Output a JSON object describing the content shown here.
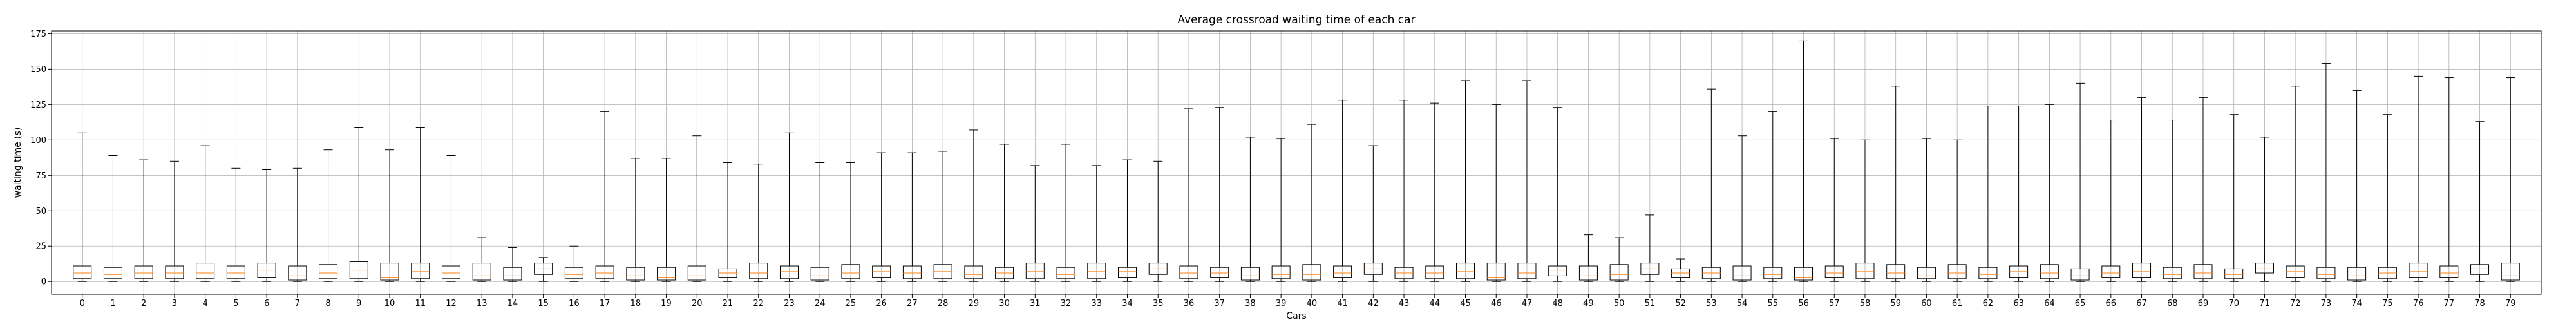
{
  "chart_data": {
    "type": "box",
    "title": "Average crossroad waiting time of each car",
    "xlabel": "Cars",
    "ylabel": "waiting time (s)",
    "ylim": [
      -9,
      177
    ],
    "yticks": [
      0,
      25,
      50,
      75,
      100,
      125,
      150,
      175
    ],
    "grid": true,
    "categories": [
      "0",
      "1",
      "2",
      "3",
      "4",
      "5",
      "6",
      "7",
      "8",
      "9",
      "10",
      "11",
      "12",
      "13",
      "14",
      "15",
      "16",
      "17",
      "18",
      "19",
      "20",
      "21",
      "22",
      "23",
      "24",
      "25",
      "26",
      "27",
      "28",
      "29",
      "30",
      "31",
      "32",
      "33",
      "34",
      "35",
      "36",
      "37",
      "38",
      "39",
      "40",
      "41",
      "42",
      "43",
      "44",
      "45",
      "46",
      "47",
      "48",
      "49",
      "50",
      "51",
      "52",
      "53",
      "54",
      "55",
      "56",
      "57",
      "58",
      "59",
      "60",
      "61",
      "62",
      "63",
      "64",
      "65",
      "66",
      "67",
      "68",
      "69",
      "70",
      "71",
      "72",
      "73",
      "74",
      "75",
      "76",
      "77",
      "78",
      "79"
    ],
    "whisker_low": [
      0,
      0,
      0,
      0,
      0,
      0,
      0,
      0,
      0,
      0,
      0,
      0,
      0,
      0,
      0,
      0,
      0,
      0,
      0,
      0,
      0,
      0,
      0,
      0,
      0,
      0,
      0,
      0,
      0,
      0,
      0,
      0,
      0,
      0,
      0,
      0,
      0,
      0,
      0,
      0,
      0,
      0,
      0,
      0,
      0,
      0,
      0,
      0,
      0,
      0,
      0,
      0,
      0,
      0,
      0,
      0,
      0,
      0,
      0,
      0,
      0,
      0,
      0,
      0,
      0,
      0,
      0,
      0,
      0,
      0,
      0,
      0,
      0,
      0,
      0,
      0,
      0,
      0,
      0,
      0
    ],
    "q1": [
      2,
      2,
      2,
      2,
      2,
      2,
      3,
      1,
      2,
      2,
      1,
      2,
      2,
      1,
      1,
      5,
      2,
      2,
      1,
      1,
      1,
      3,
      2,
      2,
      1,
      2,
      3,
      2,
      2,
      2,
      2,
      2,
      2,
      2,
      3,
      5,
      2,
      3,
      1,
      2,
      1,
      3,
      5,
      2,
      2,
      2,
      1,
      2,
      4,
      1,
      1,
      5,
      3,
      2,
      1,
      2,
      1,
      3,
      2,
      2,
      2,
      2,
      2,
      3,
      2,
      1,
      3,
      3,
      2,
      2,
      2,
      6,
      3,
      2,
      1,
      2,
      3,
      3,
      5,
      1
    ],
    "median": [
      6,
      5,
      6,
      6,
      6,
      6,
      8,
      4,
      6,
      8,
      3,
      7,
      6,
      4,
      4,
      9,
      5,
      6,
      4,
      3,
      4,
      6,
      6,
      7,
      4,
      6,
      7,
      6,
      7,
      5,
      6,
      7,
      5,
      7,
      7,
      9,
      6,
      6,
      4,
      5,
      5,
      6,
      9,
      6,
      6,
      7,
      3,
      6,
      8,
      4,
      5,
      9,
      6,
      6,
      4,
      5,
      3,
      6,
      7,
      6,
      4,
      6,
      5,
      7,
      6,
      4,
      6,
      7,
      5,
      6,
      5,
      9,
      7,
      5,
      4,
      6,
      7,
      6,
      9,
      4
    ],
    "q3": [
      11,
      10,
      11,
      11,
      13,
      11,
      13,
      11,
      12,
      14,
      13,
      13,
      11,
      13,
      10,
      13,
      10,
      11,
      10,
      10,
      11,
      9,
      13,
      11,
      10,
      12,
      11,
      11,
      12,
      11,
      10,
      13,
      10,
      13,
      10,
      13,
      11,
      10,
      10,
      11,
      12,
      11,
      13,
      10,
      11,
      13,
      13,
      13,
      11,
      11,
      12,
      13,
      9,
      10,
      11,
      10,
      10,
      11,
      13,
      12,
      10,
      12,
      10,
      11,
      12,
      9,
      11,
      13,
      10,
      12,
      9,
      13,
      11,
      10,
      10,
      10,
      13,
      11,
      12,
      13
    ],
    "whisker_high": [
      105,
      89,
      86,
      85,
      96,
      80,
      79,
      80,
      93,
      109,
      93,
      109,
      89,
      31,
      24,
      17,
      25,
      120,
      87,
      87,
      103,
      84,
      83,
      105,
      84,
      84,
      91,
      91,
      92,
      107,
      97,
      82,
      97,
      82,
      86,
      85,
      122,
      123,
      102,
      101,
      111,
      128,
      96,
      128,
      126,
      142,
      125,
      142,
      123,
      33,
      31,
      47,
      16,
      136,
      103,
      120,
      170,
      101,
      100,
      138,
      101,
      100,
      124,
      124,
      125,
      140,
      114,
      130,
      114,
      130,
      118,
      102,
      138,
      154,
      135,
      118,
      145,
      144,
      113,
      144
    ]
  }
}
